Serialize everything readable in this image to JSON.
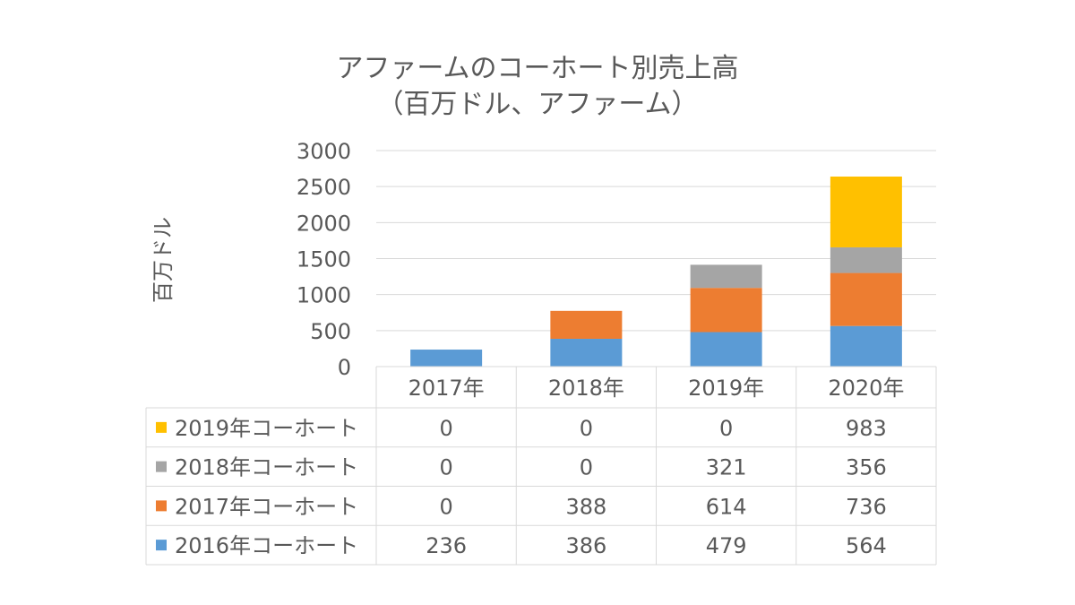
{
  "chart_data": {
    "type": "bar",
    "stacked": true,
    "title": "アファームのコーホート別売上高",
    "subtitle": "（百万ドル、アファーム）",
    "xlabel": "",
    "ylabel": "百万ドル",
    "ylim": [
      0,
      3000
    ],
    "yticks": [
      0,
      500,
      1000,
      1500,
      2000,
      2500,
      3000
    ],
    "grid": true,
    "legend": "data-table",
    "categories": [
      "2017年",
      "2018年",
      "2019年",
      "2020年"
    ],
    "series": [
      {
        "name": "2016年コーホート",
        "color": "#5b9bd5",
        "values": [
          236,
          386,
          479,
          564
        ]
      },
      {
        "name": "2017年コーホート",
        "color": "#ed7d31",
        "values": [
          0,
          388,
          614,
          736
        ]
      },
      {
        "name": "2018年コーホート",
        "color": "#a5a5a5",
        "values": [
          0,
          0,
          321,
          356
        ]
      },
      {
        "name": "2019年コーホート",
        "color": "#ffc000",
        "values": [
          0,
          0,
          0,
          983
        ]
      }
    ]
  }
}
